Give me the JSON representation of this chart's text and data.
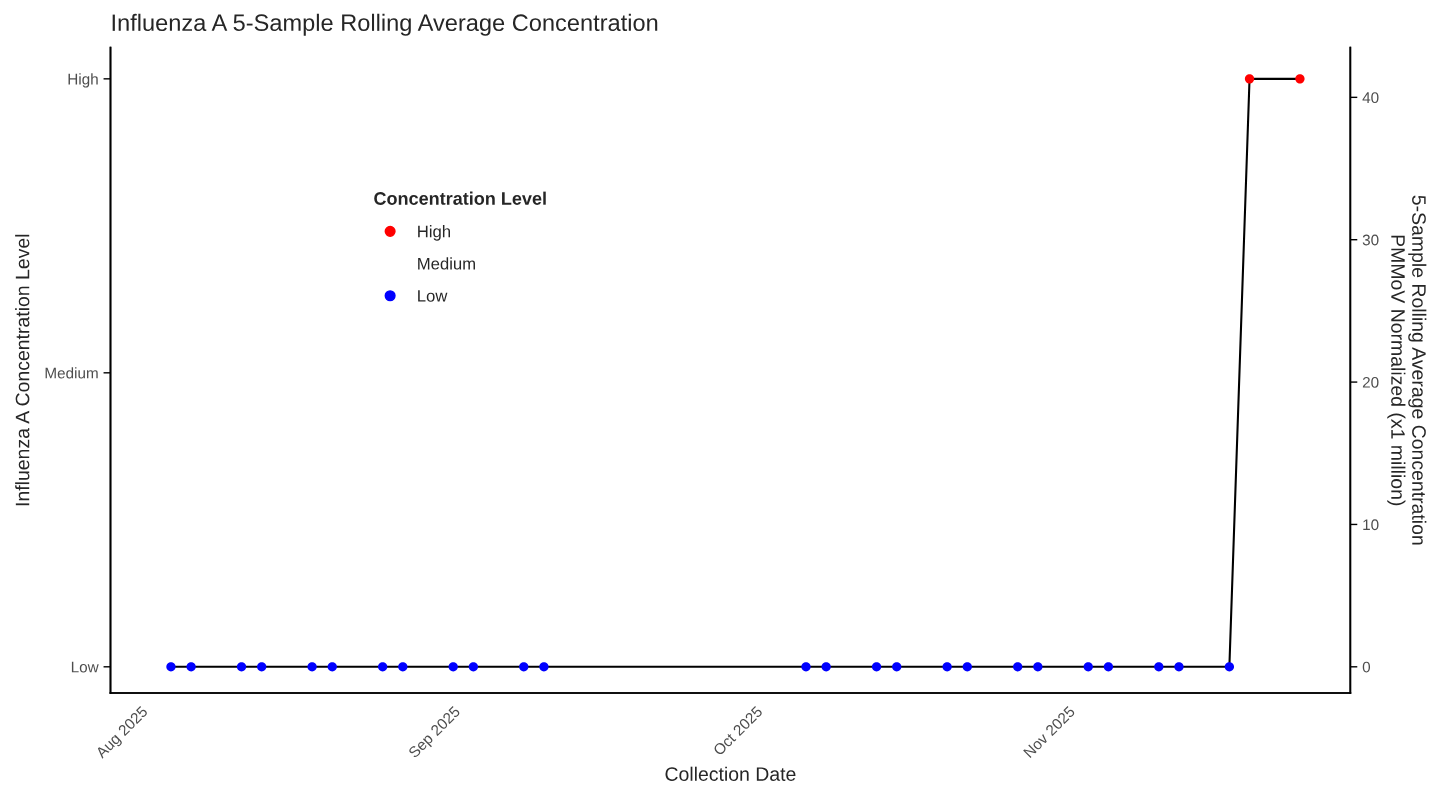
{
  "chart_data": {
    "type": "scatter",
    "title": "Influenza A 5-Sample Rolling Average Concentration",
    "xlabel": "Collection Date",
    "ylabel": "Influenza A Concentration Level",
    "y2label": "5-Sample Rolling Average Concentration\nPMMoV Normalized (x1 million)",
    "legend_title": "Concentration Level",
    "x": [
      "2025-08-04",
      "2025-08-06",
      "2025-08-11",
      "2025-08-13",
      "2025-08-18",
      "2025-08-20",
      "2025-08-25",
      "2025-08-27",
      "2025-09-01",
      "2025-09-03",
      "2025-09-08",
      "2025-09-10",
      "2025-10-06",
      "2025-10-08",
      "2025-10-13",
      "2025-10-15",
      "2025-10-20",
      "2025-10-22",
      "2025-10-27",
      "2025-10-29",
      "2025-11-03",
      "2025-11-05",
      "2025-11-10",
      "2025-11-12",
      "2025-11-17",
      "2025-11-19",
      "2025-11-24"
    ],
    "series": [
      {
        "type": "line",
        "axis": "y2",
        "color": "#000000",
        "marker": "none",
        "values": [
          0,
          0,
          0,
          0,
          0,
          0,
          0,
          0,
          0,
          0,
          0,
          0,
          0,
          0,
          0,
          0,
          0,
          0,
          0,
          0,
          0,
          0,
          0,
          0,
          0,
          41.3,
          41.3
        ]
      },
      {
        "name": "High",
        "axis": "y2",
        "color": "#ff0000",
        "marker": "circle",
        "values": [
          null,
          null,
          null,
          null,
          null,
          null,
          null,
          null,
          null,
          null,
          null,
          null,
          null,
          null,
          null,
          null,
          null,
          null,
          null,
          null,
          null,
          null,
          null,
          null,
          null,
          41.3,
          41.3
        ]
      },
      {
        "name": "Medium",
        "axis": "y2",
        "marker": "circle",
        "values": [
          null,
          null,
          null,
          null,
          null,
          null,
          null,
          null,
          null,
          null,
          null,
          null,
          null,
          null,
          null,
          null,
          null,
          null,
          null,
          null,
          null,
          null,
          null,
          null,
          null,
          null,
          null
        ]
      },
      {
        "name": "Low",
        "axis": "y2",
        "color": "#0000ff",
        "marker": "circle",
        "values": [
          0,
          0,
          0,
          0,
          0,
          0,
          0,
          0,
          0,
          0,
          0,
          0,
          0,
          0,
          0,
          0,
          0,
          0,
          0,
          0,
          0,
          0,
          0,
          0,
          0,
          null,
          null
        ]
      }
    ],
    "xlim": [
      "2025-07-29",
      "2025-11-29"
    ],
    "xticks": [
      {
        "value": "2025-08-01",
        "label": "Aug 2025"
      },
      {
        "value": "2025-09-01",
        "label": "Sep 2025"
      },
      {
        "value": "2025-10-01",
        "label": "Oct 2025"
      },
      {
        "value": "2025-11-01",
        "label": "Nov 2025"
      }
    ],
    "y_categories": [
      "High",
      "Medium",
      "Low"
    ],
    "y2lim": [
      -1.84,
      43.5
    ],
    "y2ticks": [
      0,
      10,
      20,
      30,
      40
    ],
    "grid": false,
    "legend": "top left"
  }
}
